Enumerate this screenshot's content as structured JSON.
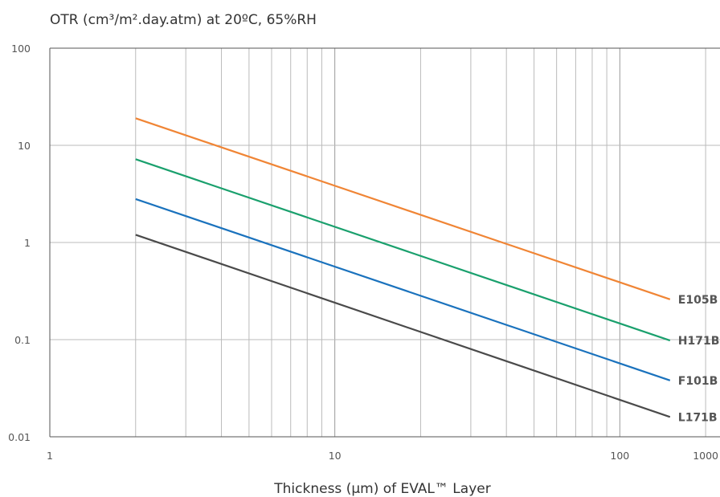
{
  "chart_data": {
    "type": "line",
    "title": "",
    "ylabel": "OTR (cm³/m².day.atm) at 20ºC, 65%RH",
    "xlabel": "Thickness (µm) of EVAL™ Layer",
    "x_scale": "log",
    "y_scale": "log",
    "xlim": [
      1,
      1000
    ],
    "ylim": [
      0.01,
      100
    ],
    "x_tick_labels": [
      "1",
      "10",
      "100",
      "1000"
    ],
    "y_tick_labels": [
      "100",
      "10",
      "1",
      "0.1",
      "0.01"
    ],
    "grid": true,
    "legend": "inline labels at line ends",
    "series": [
      {
        "name": "E105B",
        "color": "#f08535",
        "x": [
          2,
          150
        ],
        "y": [
          19,
          0.26
        ]
      },
      {
        "name": "H171B",
        "color": "#1aa06d",
        "x": [
          2,
          150
        ],
        "y": [
          7.2,
          0.098
        ]
      },
      {
        "name": "F101B",
        "color": "#1a72bd",
        "x": [
          2,
          150
        ],
        "y": [
          2.8,
          0.038
        ]
      },
      {
        "name": "L171B",
        "color": "#4a4a4a",
        "x": [
          2,
          150
        ],
        "y": [
          1.2,
          0.016
        ]
      }
    ]
  }
}
